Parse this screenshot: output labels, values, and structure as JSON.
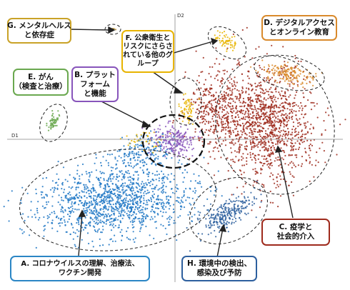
{
  "axes": {
    "d1": "D1",
    "d2": "D2"
  },
  "colors": {
    "A": "#1f77c4",
    "B": "#8855bb",
    "C": "#9e2a1c",
    "D": "#d98a2c",
    "E": "#6aa84f",
    "F": "#e8b400",
    "G": "#b8912f",
    "H": "#2d5f9e"
  },
  "labels": {
    "A": [
      "A. コロナウイルスの理解、治療法、",
      "ワクチン開発"
    ],
    "B": [
      "B. プラット",
      "フォーム",
      "と機能"
    ],
    "C": [
      "C. 疫学と",
      "社会的介入"
    ],
    "D": [
      "D. デジタルアクセス",
      "とオンライン教育"
    ],
    "E": [
      "E. がん",
      "（検査と治療）"
    ],
    "F": [
      "F. 公衆衛生と",
      "リスクにさらさ",
      "れている他のグ",
      "ループ"
    ],
    "G": [
      "G. メンタルヘルス",
      "と依存症"
    ],
    "H": [
      "H. 環境中の検出、",
      "感染及び予防"
    ]
  }
}
